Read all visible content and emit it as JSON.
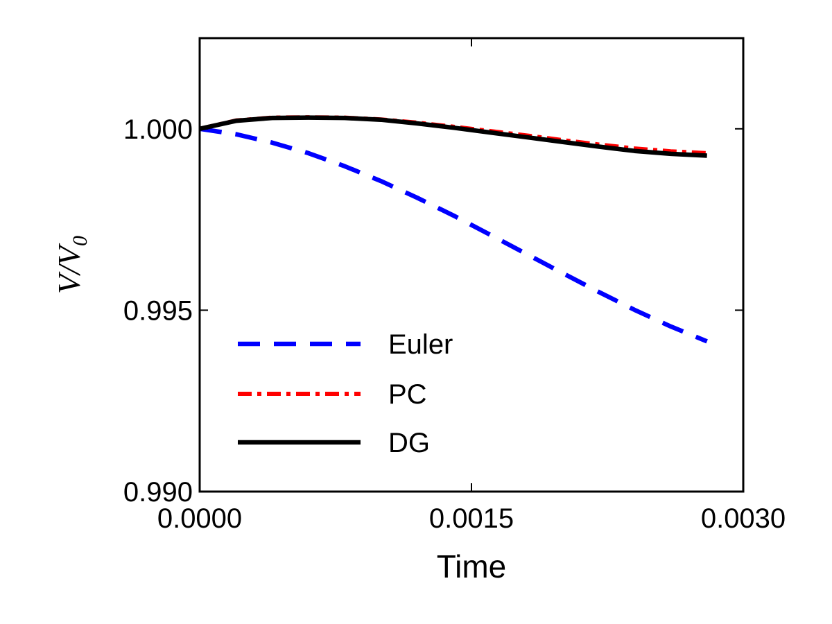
{
  "chart_data": {
    "type": "line",
    "title": "",
    "xlabel": "Time",
    "ylabel_main": "V/V",
    "ylabel_sub": "0",
    "xlim": [
      0.0,
      0.003
    ],
    "ylim": [
      0.99,
      1.0025
    ],
    "x_ticks": [
      "0.0000",
      "0.0015",
      "0.0030"
    ],
    "x_tick_values": [
      0.0,
      0.0015,
      0.003
    ],
    "y_ticks": [
      "0.990",
      "0.995",
      "1.000"
    ],
    "y_tick_values": [
      0.99,
      0.995,
      1.0
    ],
    "grid": false,
    "legend_position": "lower-left",
    "x": [
      0.0,
      0.0002,
      0.0004,
      0.0006,
      0.0008,
      0.001,
      0.0012,
      0.0014,
      0.0016,
      0.0018,
      0.002,
      0.0022,
      0.0024,
      0.0026,
      0.0028
    ],
    "series": [
      {
        "name": "Euler",
        "color": "#0000ff",
        "style": "dashed",
        "values": [
          1.0,
          0.99985,
          0.99962,
          0.99933,
          0.99897,
          0.99856,
          0.9981,
          0.99761,
          0.99709,
          0.99656,
          0.99603,
          0.99551,
          0.99501,
          0.99455,
          0.99414
        ]
      },
      {
        "name": "PC",
        "color": "#ff0000",
        "style": "dashdot",
        "values": [
          1.0,
          1.00023,
          1.00031,
          1.00032,
          1.00031,
          1.00026,
          1.00017,
          1.00006,
          0.99994,
          0.99982,
          0.99969,
          0.99957,
          0.99946,
          0.99938,
          0.99933
        ]
      },
      {
        "name": "DG",
        "color": "#000000",
        "style": "solid",
        "values": [
          1.0,
          1.00022,
          1.0003,
          1.00031,
          1.0003,
          1.00025,
          1.00015,
          1.00003,
          0.9999,
          0.99977,
          0.99964,
          0.99951,
          0.99939,
          0.99931,
          0.99926
        ]
      }
    ]
  }
}
